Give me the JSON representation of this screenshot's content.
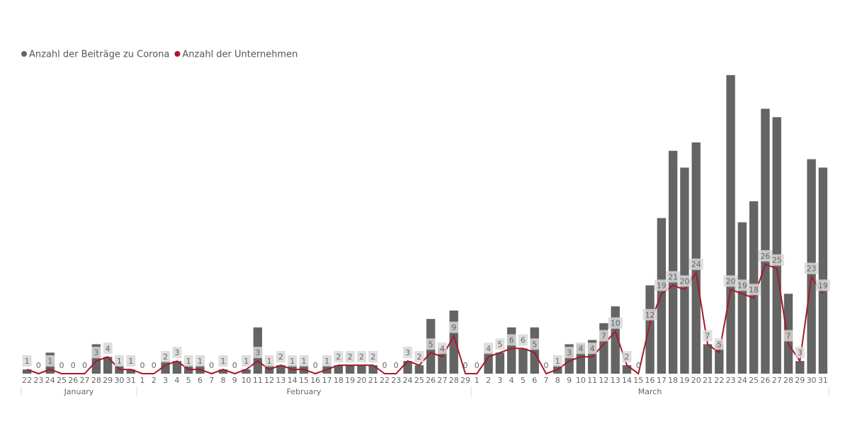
{
  "chart_data": {
    "type": "bar+line",
    "months": [
      {
        "name": "January",
        "days": [
          22,
          23,
          24,
          25,
          26,
          27,
          28,
          29,
          30,
          31
        ]
      },
      {
        "name": "February",
        "days": [
          1,
          2,
          3,
          4,
          5,
          6,
          7,
          8,
          9,
          10,
          11,
          12,
          13,
          14,
          15,
          16,
          17,
          18,
          19,
          20,
          21,
          22,
          23,
          24,
          25,
          26,
          27,
          28,
          29
        ]
      },
      {
        "name": "March",
        "days": [
          1,
          2,
          3,
          4,
          5,
          6,
          7,
          8,
          9,
          10,
          11,
          12,
          13,
          14,
          15,
          16,
          17,
          18,
          19,
          20,
          21,
          22,
          23,
          24,
          25,
          26,
          27,
          28,
          29,
          30,
          31
        ]
      }
    ],
    "ylim": [
      0,
      72
    ],
    "series": [
      {
        "name": "Anzahl der Beiträge zu Corona",
        "type": "bar",
        "color": "#646464",
        "values": [
          1,
          0,
          5,
          0,
          0,
          0,
          7,
          4,
          2,
          1,
          0,
          0,
          3,
          3,
          2,
          2,
          0,
          1,
          0,
          1,
          11,
          2,
          2,
          2,
          2,
          0,
          2,
          2,
          2,
          2,
          2,
          0,
          0,
          3,
          2,
          13,
          6,
          15,
          0,
          0,
          5,
          5,
          11,
          6,
          11,
          0,
          2,
          7,
          7,
          8,
          12,
          16,
          2,
          0,
          21,
          37,
          53,
          49,
          55,
          7,
          7,
          71,
          36,
          41,
          63,
          61,
          19,
          3,
          51,
          49
        ]
      },
      {
        "name": "Anzahl der Unternehmen",
        "type": "line",
        "color": "#a8182b",
        "values": [
          1,
          0,
          1,
          0,
          0,
          0,
          3,
          4,
          1,
          1,
          0,
          0,
          2,
          3,
          1,
          1,
          0,
          1,
          0,
          1,
          3,
          1,
          2,
          1,
          1,
          0,
          1,
          2,
          2,
          2,
          2,
          0,
          0,
          3,
          2,
          5,
          4,
          9,
          0,
          0,
          4,
          5,
          6,
          6,
          5,
          0,
          1,
          3,
          4,
          4,
          7,
          10,
          2,
          0,
          12,
          19,
          21,
          20,
          24,
          7,
          5,
          20,
          19,
          18,
          26,
          25,
          7,
          3,
          23,
          19
        ]
      }
    ]
  }
}
